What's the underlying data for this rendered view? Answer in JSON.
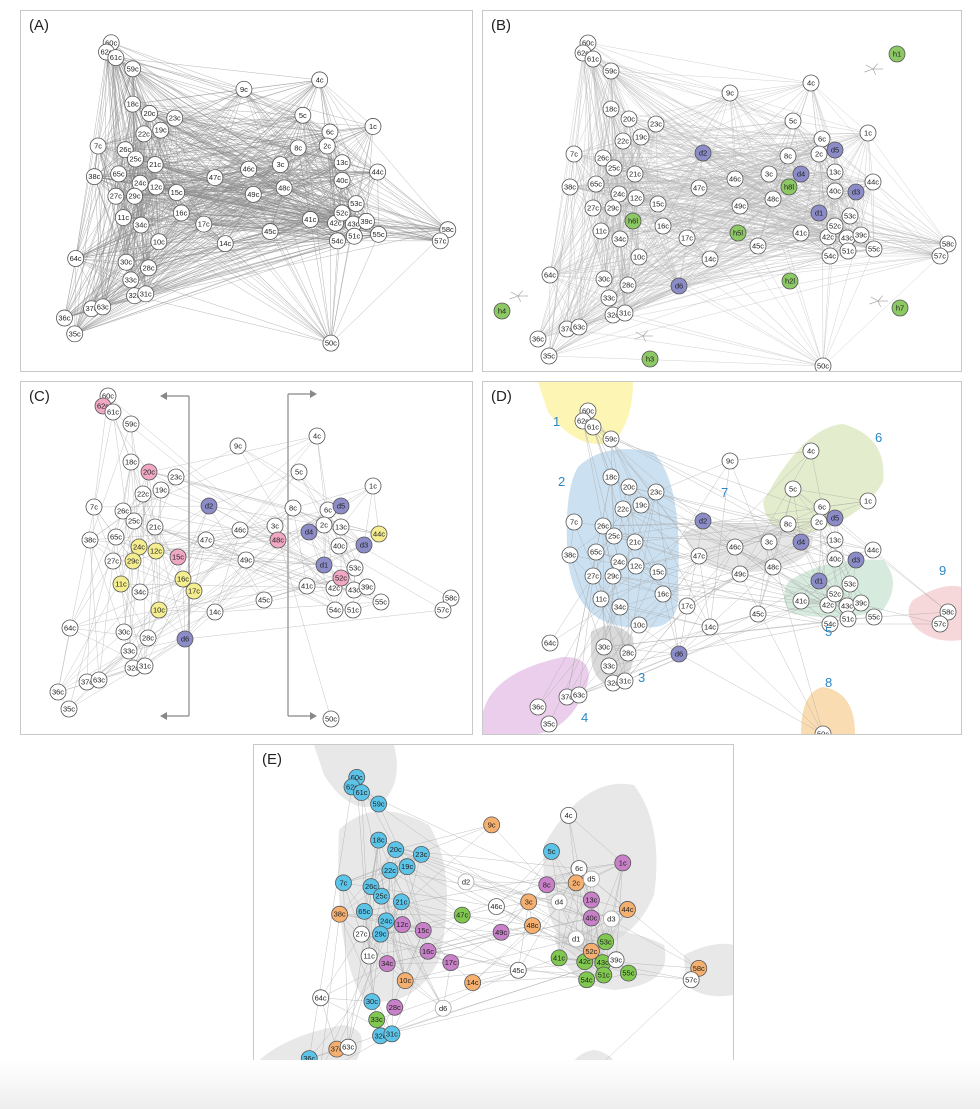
{
  "panels": {
    "A": {
      "label": "(A)"
    },
    "B": {
      "label": "(B)"
    },
    "C": {
      "label": "(C)"
    },
    "D": {
      "label": "(D)"
    },
    "E": {
      "label": "(E)"
    }
  },
  "colors": {
    "node_white": "#ffffff",
    "node_purple": "#8c8cc8",
    "node_green": "#8cc864",
    "node_yellow": "#f5ee90",
    "node_pink": "#f0a8c4",
    "node_blue": "#5cc4e8",
    "node_magenta": "#c880c8",
    "node_orange": "#f5b070",
    "node_lime": "#80c850",
    "edge": "#aaaaaa",
    "region_label": "#2b88c8"
  },
  "nodes": {
    "c": [
      "60c",
      "62c",
      "61c",
      "59c",
      "9c",
      "4c",
      "18c",
      "20c",
      "23c",
      "19c",
      "5c",
      "1c",
      "7c",
      "26c",
      "22c",
      "25c",
      "21c",
      "8c",
      "6c",
      "2c",
      "13c",
      "38c",
      "65c",
      "24c",
      "12c",
      "15c",
      "47c",
      "46c",
      "3c",
      "48c",
      "40c",
      "44c",
      "27c",
      "29c",
      "16c",
      "49c",
      "53c",
      "11c",
      "34c",
      "17c",
      "41c",
      "42c",
      "52c",
      "43c",
      "39c",
      "10c",
      "14c",
      "45c",
      "54c",
      "51c",
      "55c",
      "58c",
      "57c",
      "64c",
      "30c",
      "28c",
      "33c",
      "32c",
      "31c",
      "37c",
      "63c",
      "36c",
      "35c",
      "50c"
    ],
    "d": [
      "d1",
      "d2",
      "d3",
      "d4",
      "d5",
      "d6"
    ],
    "h": [
      "h1",
      "h2l",
      "h3",
      "h4",
      "h5l",
      "h6l",
      "h7",
      "h8l"
    ]
  },
  "regions": [
    "1",
    "2",
    "3",
    "4",
    "5",
    "6",
    "7",
    "8",
    "9"
  ]
}
